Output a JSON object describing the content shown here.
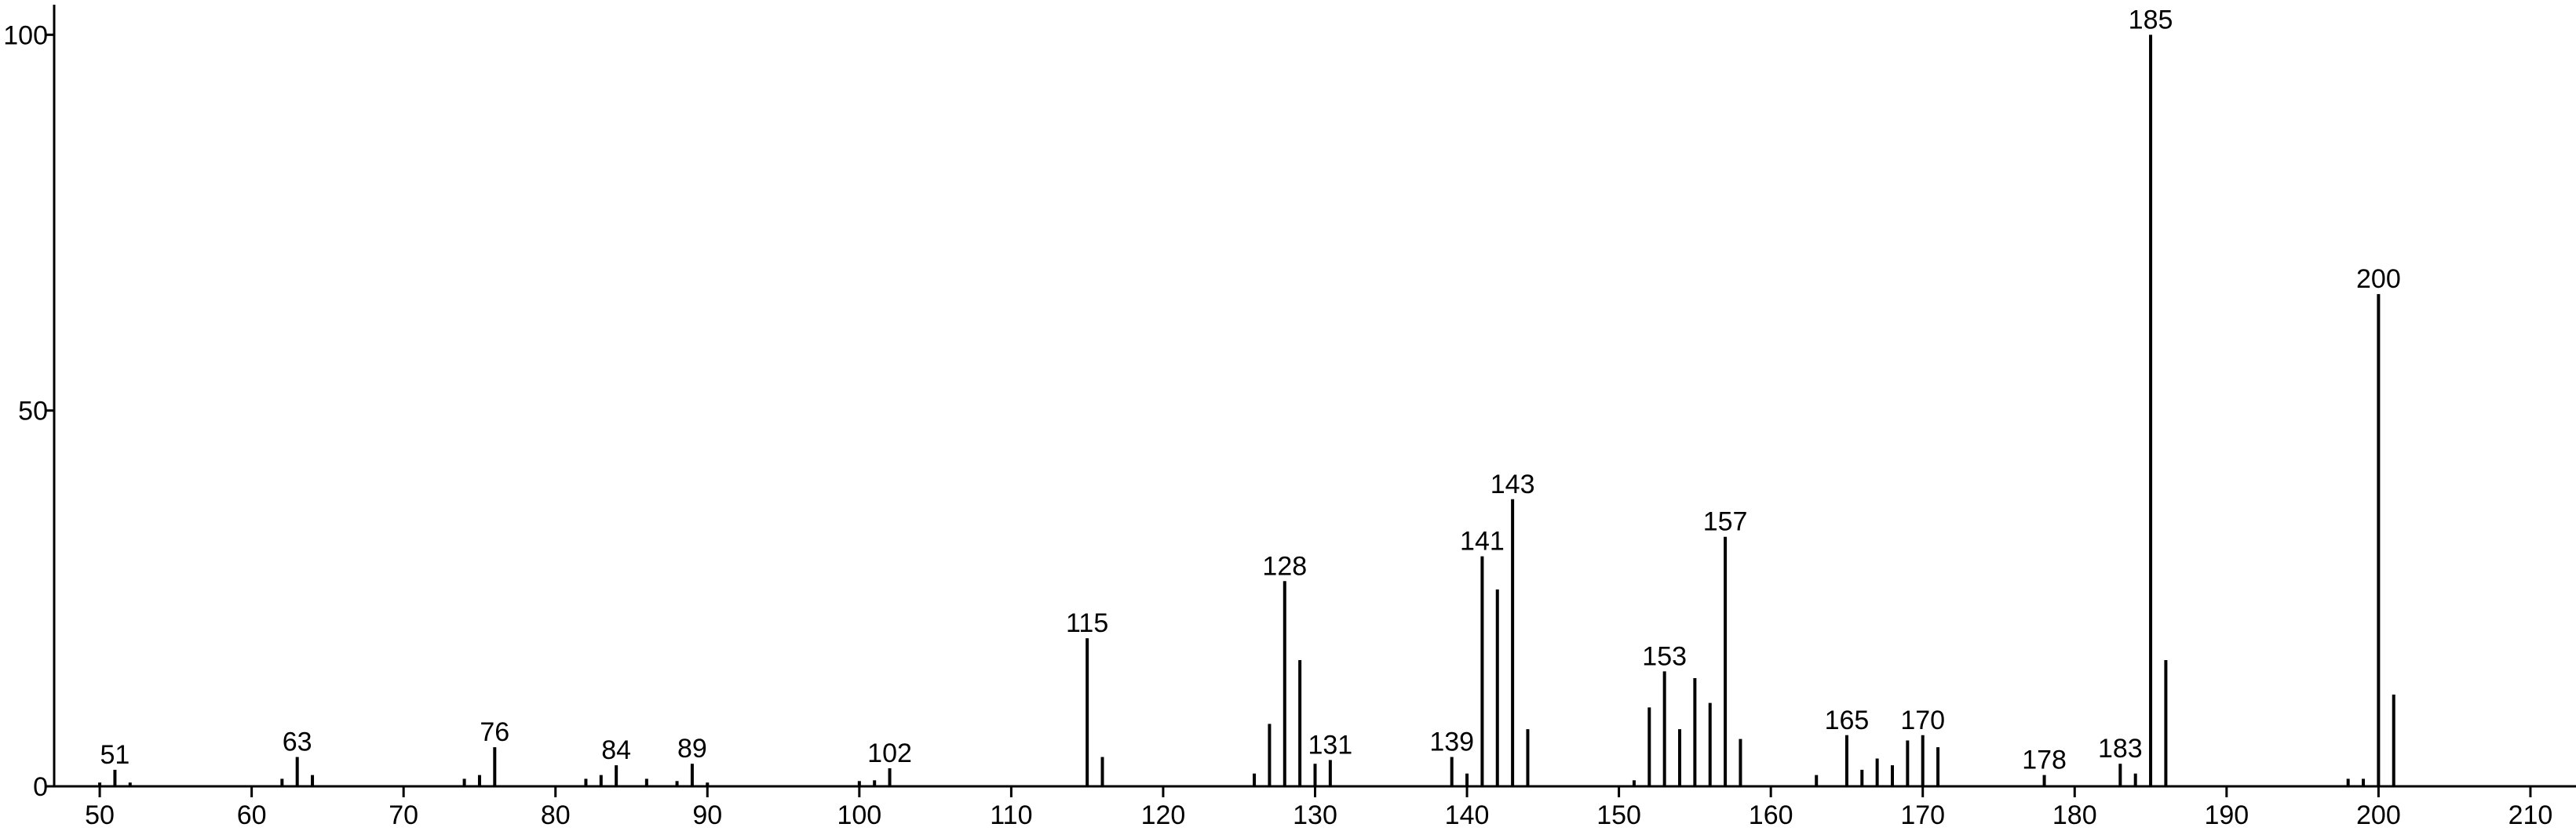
{
  "chart_data": {
    "type": "stem",
    "x": [
      50,
      51,
      52,
      62,
      63,
      64,
      74,
      75,
      76,
      82,
      83,
      84,
      86,
      88,
      89,
      90,
      100,
      101,
      102,
      115,
      116,
      126,
      127,
      128,
      129,
      130,
      131,
      139,
      140,
      141,
      142,
      143,
      144,
      151,
      152,
      153,
      154,
      155,
      156,
      157,
      158,
      163,
      165,
      166,
      167,
      168,
      169,
      170,
      171,
      178,
      183,
      184,
      185,
      186,
      198,
      199,
      200,
      201
    ],
    "values": [
      0.5,
      2.2,
      0.5,
      1.0,
      3.9,
      1.5,
      1.0,
      1.5,
      5.2,
      1.0,
      1.5,
      2.8,
      1.0,
      0.7,
      3.0,
      0.5,
      0.7,
      0.8,
      2.4,
      19.7,
      3.9,
      1.7,
      8.3,
      27.3,
      16.8,
      3.0,
      3.5,
      3.9,
      1.7,
      30.6,
      26.2,
      38.2,
      7.6,
      0.8,
      10.5,
      15.3,
      7.6,
      14.4,
      11.1,
      33.2,
      6.3,
      1.5,
      6.8,
      2.2,
      3.7,
      2.8,
      6.1,
      6.8,
      5.2,
      1.5,
      3.0,
      1.7,
      100,
      16.8,
      1.0,
      1.0,
      65.5,
      12.2
    ],
    "annotations": [
      51,
      63,
      76,
      84,
      89,
      102,
      115,
      128,
      131,
      139,
      141,
      143,
      153,
      157,
      165,
      170,
      178,
      183,
      185,
      200
    ],
    "color": "#000000",
    "xlim": [
      47,
      213
    ],
    "ylim": [
      0,
      104
    ],
    "xticks": [
      50,
      60,
      70,
      80,
      90,
      100,
      110,
      120,
      130,
      140,
      150,
      160,
      170,
      180,
      190,
      200,
      210
    ],
    "yticks": [
      0,
      50,
      100
    ]
  }
}
